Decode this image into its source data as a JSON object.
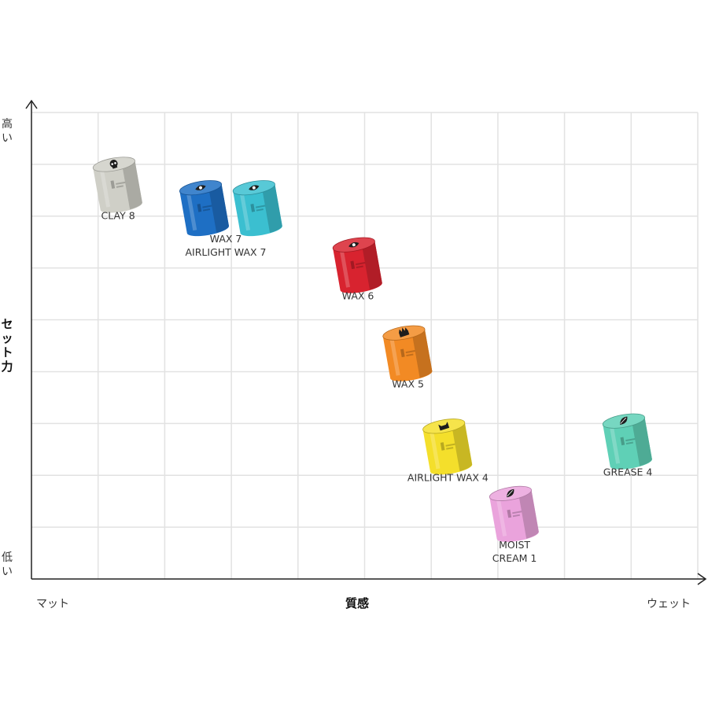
{
  "chart_data": {
    "type": "scatter",
    "xlabel": "質感",
    "ylabel": "セット力",
    "x_axis": {
      "min_label": "マット",
      "max_label": "ウェット"
    },
    "y_axis": {
      "max_label": "高い",
      "min_label": "低い"
    },
    "xlim": [
      0,
      10
    ],
    "ylim": [
      0,
      9
    ],
    "grid": true,
    "points": [
      {
        "label": [
          "CLAY 8"
        ],
        "x": 1.3,
        "y": 7.55,
        "color": "#cfcfc7",
        "icon": "skull-icon"
      },
      {
        "label": [],
        "x": 2.6,
        "y": 7.1,
        "color": "#1e6fc4",
        "icon": "eye-icon"
      },
      {
        "label": [
          "WAX 7",
          "AIRLIGHT WAX 7"
        ],
        "x": 3.4,
        "y": 7.1,
        "color": "#3bbfd0",
        "icon": "eye-icon"
      },
      {
        "label": [
          "WAX 6"
        ],
        "x": 4.9,
        "y": 6.0,
        "color": "#d8232f",
        "icon": "eye-icon"
      },
      {
        "label": [
          "WAX 5"
        ],
        "x": 5.65,
        "y": 4.3,
        "color": "#f28a24",
        "icon": "hand-icon"
      },
      {
        "label": [
          "AIRLIGHT WAX 4"
        ],
        "x": 6.25,
        "y": 2.5,
        "color": "#f4df2b",
        "icon": "cat-icon"
      },
      {
        "label": [
          "MOIST",
          "CREAM 1"
        ],
        "x": 7.25,
        "y": 1.2,
        "color": "#eaa3dc",
        "icon": "leaf-icon"
      },
      {
        "label": [
          "GREASE 4"
        ],
        "x": 8.95,
        "y": 2.6,
        "color": "#5fd0b6",
        "icon": "leaf-icon"
      }
    ]
  }
}
